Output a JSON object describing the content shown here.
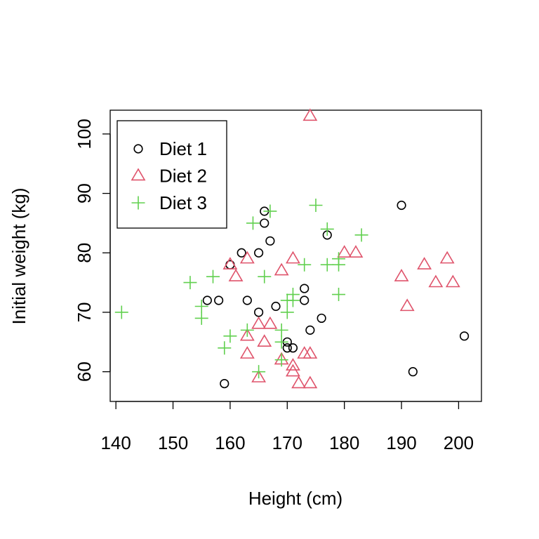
{
  "chart_data": {
    "type": "scatter",
    "title": "",
    "xlabel": "Height (cm)",
    "ylabel": "Initial weight (kg)",
    "xlim": [
      139,
      204
    ],
    "ylim": [
      55,
      104
    ],
    "xticks": [
      140,
      150,
      160,
      170,
      180,
      190,
      200
    ],
    "yticks": [
      60,
      70,
      80,
      90,
      100
    ],
    "grid": false,
    "legend_position": "top-left",
    "series": [
      {
        "name": "Diet 1",
        "marker": "circle",
        "color": "#000000",
        "points": [
          [
            159,
            58
          ],
          [
            160,
            78
          ],
          [
            162,
            80
          ],
          [
            163,
            72
          ],
          [
            165,
            70
          ],
          [
            165,
            80
          ],
          [
            166,
            85
          ],
          [
            166,
            87
          ],
          [
            167,
            82
          ],
          [
            168,
            71
          ],
          [
            170,
            65
          ],
          [
            170,
            64
          ],
          [
            171,
            64
          ],
          [
            173,
            74
          ],
          [
            173,
            72
          ],
          [
            174,
            67
          ],
          [
            176,
            69
          ],
          [
            177,
            83
          ],
          [
            156,
            72
          ],
          [
            158,
            72
          ],
          [
            190,
            88
          ],
          [
            192,
            60
          ],
          [
            201,
            66
          ]
        ]
      },
      {
        "name": "Diet 2",
        "marker": "triangle",
        "color": "#DF536B",
        "points": [
          [
            160,
            78
          ],
          [
            161,
            76
          ],
          [
            163,
            79
          ],
          [
            163,
            66
          ],
          [
            163,
            63
          ],
          [
            165,
            68
          ],
          [
            165,
            59
          ],
          [
            166,
            65
          ],
          [
            167,
            68
          ],
          [
            169,
            62
          ],
          [
            169,
            77
          ],
          [
            171,
            79
          ],
          [
            171,
            61
          ],
          [
            171,
            60
          ],
          [
            172,
            58
          ],
          [
            173,
            63
          ],
          [
            174,
            63
          ],
          [
            174,
            58
          ],
          [
            174,
            103
          ],
          [
            180,
            80
          ],
          [
            182,
            80
          ],
          [
            190,
            76
          ],
          [
            191,
            71
          ],
          [
            194,
            78
          ],
          [
            196,
            75
          ],
          [
            198,
            79
          ],
          [
            199,
            75
          ]
        ]
      },
      {
        "name": "Diet 3",
        "marker": "plus",
        "color": "#61D04F",
        "points": [
          [
            141,
            70
          ],
          [
            153,
            75
          ],
          [
            155,
            71
          ],
          [
            155,
            69
          ],
          [
            157,
            76
          ],
          [
            159,
            64
          ],
          [
            160,
            66
          ],
          [
            163,
            67
          ],
          [
            164,
            85
          ],
          [
            165,
            60
          ],
          [
            166,
            76
          ],
          [
            167,
            87
          ],
          [
            169,
            65
          ],
          [
            169,
            62
          ],
          [
            169,
            67
          ],
          [
            170,
            70
          ],
          [
            170,
            72
          ],
          [
            171,
            73
          ],
          [
            171,
            72
          ],
          [
            173,
            78
          ],
          [
            175,
            88
          ],
          [
            177,
            84
          ],
          [
            177,
            78
          ],
          [
            179,
            79
          ],
          [
            179,
            78
          ],
          [
            179,
            73
          ],
          [
            183,
            83
          ]
        ]
      }
    ]
  }
}
